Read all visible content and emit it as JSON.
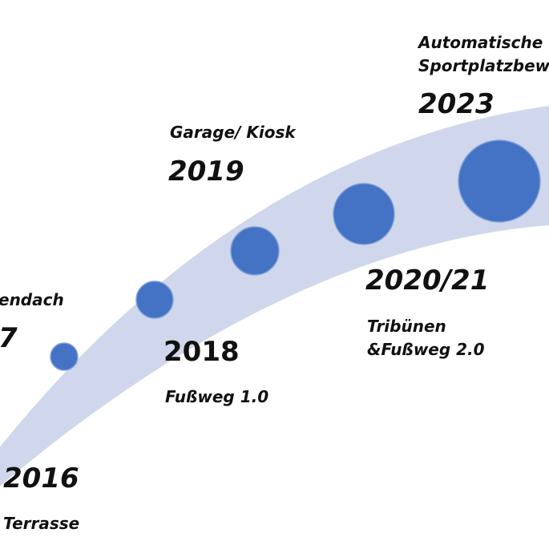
{
  "colors": {
    "band": "#d0d7ec",
    "milestone": "#4472c4",
    "milestone_stroke": "#7fa0d8",
    "text": "#111111"
  },
  "milestones": [
    {
      "year": "2016",
      "label": "Terrasse"
    },
    {
      "year": "7",
      "label": "endach"
    },
    {
      "year": "2018",
      "label": "Fußweg 1.0"
    },
    {
      "year": "2019",
      "label": "Garage/ Kiosk"
    },
    {
      "year": "2020/21",
      "label_line1": "Tribünen",
      "label_line2": "&Fußweg 2.0"
    },
    {
      "year": "2023",
      "label_line1": "Automatische",
      "label_line2": "Sportplatzbew"
    }
  ]
}
